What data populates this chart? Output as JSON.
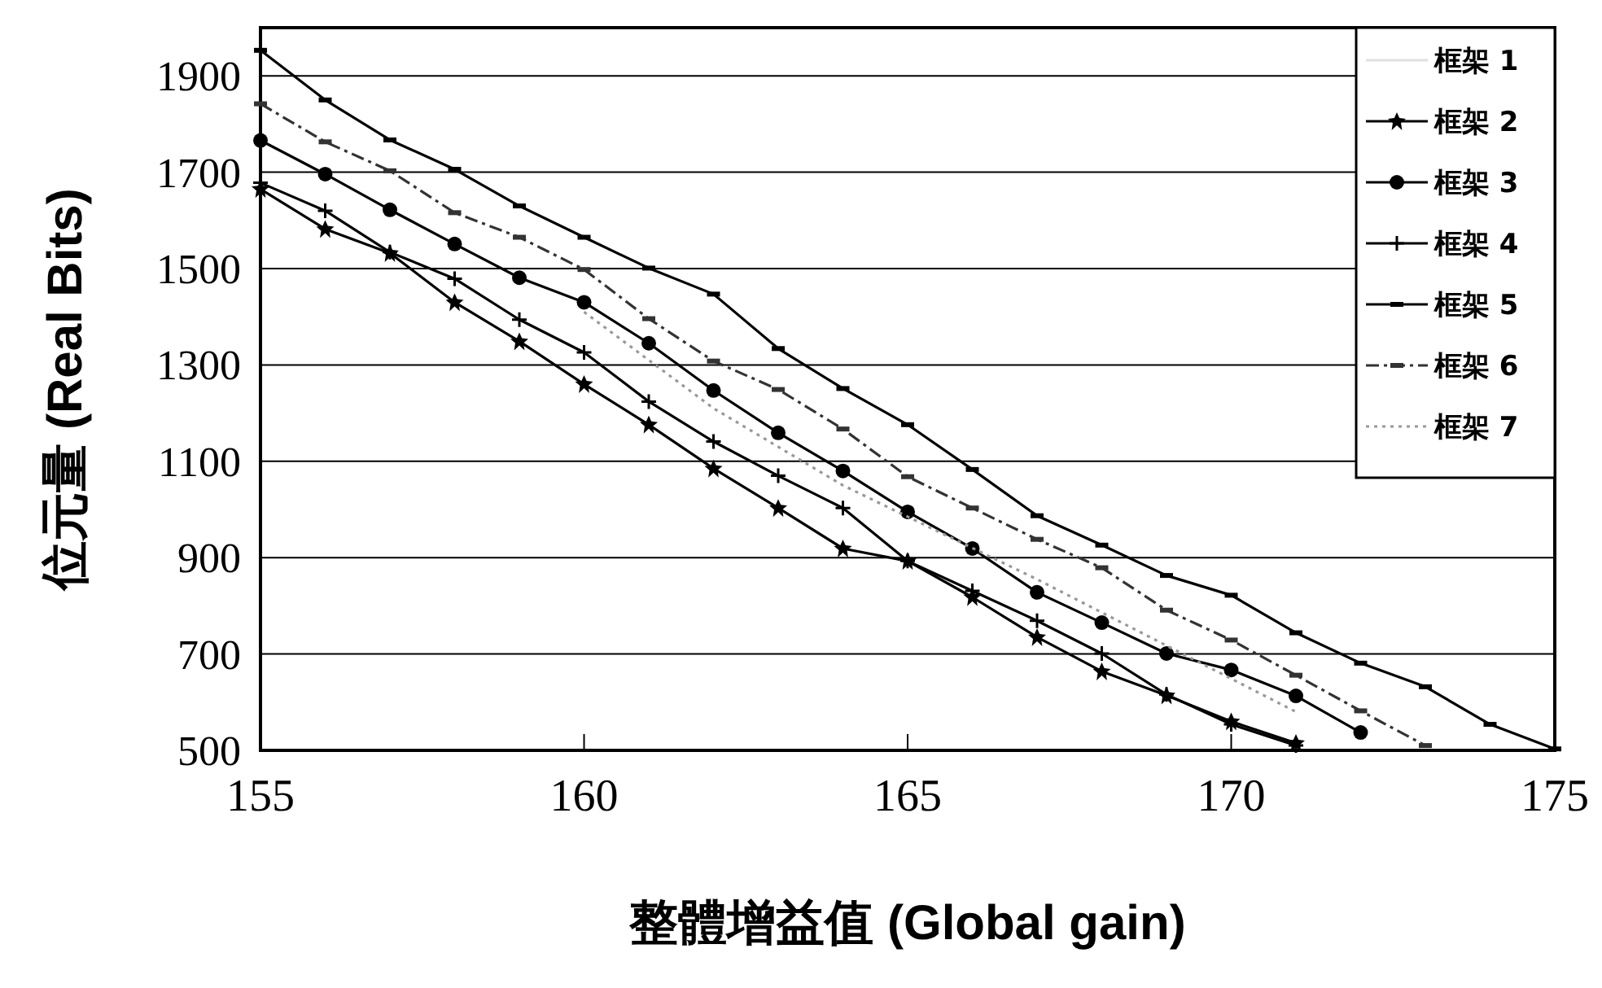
{
  "chart_data": {
    "type": "line",
    "xlabel": "整體增益值 (Global gain)",
    "ylabel": "位元量 (Real Bits)",
    "xlim": [
      155,
      175
    ],
    "xticks": [
      155,
      160,
      165,
      170,
      175
    ],
    "ylim": [
      500,
      2000
    ],
    "yticks": [
      500,
      700,
      900,
      1100,
      1300,
      1500,
      1700,
      1900
    ],
    "grid": "y",
    "legend": "top right",
    "series": [
      {
        "name": "框架 1",
        "color": "#e0e0e0",
        "marker": "none"
      },
      {
        "name": "框架 2",
        "color": "#000000",
        "marker": "star",
        "x": [
          155,
          156,
          157,
          158,
          159,
          160,
          161,
          162,
          163,
          164,
          165,
          166,
          167,
          168,
          169,
          170,
          171
        ],
        "values": [
          1665,
          1582,
          1532,
          1430,
          1349,
          1260,
          1176,
          1085,
          1003,
          919,
          893,
          818,
          735,
          664,
          614,
          560,
          515
        ]
      },
      {
        "name": "框架 3",
        "color": "#000000",
        "marker": "circle",
        "x": [
          155,
          156,
          157,
          158,
          159,
          160,
          161,
          162,
          163,
          164,
          165,
          166,
          167,
          168,
          169,
          170,
          171,
          172
        ],
        "values": [
          1766,
          1696,
          1622,
          1551,
          1481,
          1430,
          1345,
          1247,
          1159,
          1080,
          995,
          919,
          828,
          765,
          701,
          667,
          613,
          537
        ]
      },
      {
        "name": "框架 4",
        "color": "#000000",
        "marker": "cross",
        "x": [
          155,
          156,
          157,
          158,
          159,
          160,
          161,
          162,
          163,
          164,
          165,
          166,
          167,
          168,
          169,
          170,
          171
        ],
        "values": [
          1678,
          1620,
          1534,
          1479,
          1394,
          1326,
          1224,
          1141,
          1070,
          1003,
          893,
          831,
          769,
          701,
          616,
          554,
          510
        ]
      },
      {
        "name": "框架 5",
        "color": "#000000",
        "marker": "square",
        "x": [
          155,
          156,
          157,
          158,
          159,
          160,
          161,
          162,
          163,
          164,
          165,
          166,
          167,
          168,
          169,
          170,
          171,
          172,
          173,
          174,
          175
        ],
        "values": [
          1953,
          1850,
          1767,
          1706,
          1630,
          1565,
          1501,
          1447,
          1334,
          1251,
          1176,
          1083,
          987,
          926,
          863,
          822,
          744,
          681,
          632,
          554,
          503
        ]
      },
      {
        "name": "框架 6",
        "color": "#333333",
        "marker": "square",
        "line_style": "dashed",
        "x": [
          155,
          156,
          157,
          158,
          159,
          160,
          161,
          162,
          163,
          164,
          165,
          166,
          167,
          168,
          169,
          170,
          171,
          172,
          173
        ],
        "values": [
          1842,
          1763,
          1703,
          1616,
          1565,
          1498,
          1396,
          1308,
          1249,
          1167,
          1068,
          1003,
          938,
          879,
          791,
          729,
          656,
          582,
          510
        ]
      },
      {
        "name": "框架 7",
        "color": "#999999",
        "marker": "none",
        "line_style": "dotted",
        "x": [
          160,
          162,
          164,
          167,
          171
        ],
        "values": [
          1410,
          1210,
          1050,
          855,
          580
        ]
      }
    ]
  }
}
